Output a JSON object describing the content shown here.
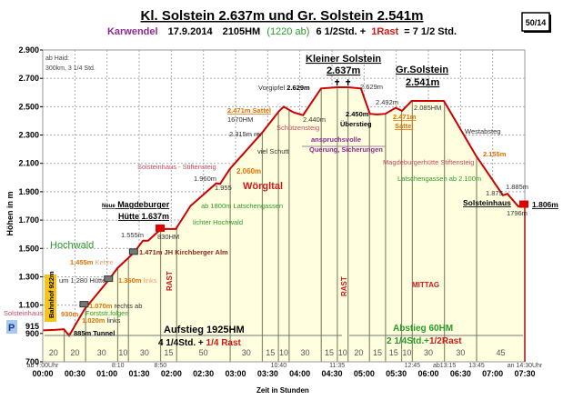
{
  "header": {
    "title": "Kl. Solstein 2.637m und Gr. Solstein 2.541m",
    "region": "Karwendel",
    "date": "17.9.2014",
    "hm": "2105HM",
    "hm_down": "(1220 ab)",
    "duration": "6 1/2Std. +",
    "rest": "1Rast",
    "total": "= 7 1/2 Std.",
    "badge": "50/14"
  },
  "colors": {
    "profile": "#cc0000",
    "fill": "#ffffe0",
    "region": "#8a2a90",
    "down": "#2a9a2a",
    "rest": "#d01818"
  },
  "chart_data": {
    "type": "area",
    "xlabel": "Zeit in Stunden",
    "ylabel": "Höhen in m",
    "xlim": [
      0,
      7.5
    ],
    "ylim": [
      700,
      2900
    ],
    "grid": true,
    "x_ticks": [
      "00:00",
      "00:30",
      "01:00",
      "01:30",
      "02:00",
      "02:30",
      "03:00",
      "03:30",
      "04:00",
      "04:30",
      "05:00",
      "05:30",
      "06:00",
      "06:30",
      "07:00",
      "07:30"
    ],
    "y_ticks": [
      "2.900",
      "2.700",
      "2.500",
      "2.300",
      "2.100",
      "1.900",
      "1.700",
      "1.500",
      "1.300",
      "1.100",
      "900",
      "700"
    ],
    "y_tick_values": [
      2900,
      2700,
      2500,
      2300,
      2100,
      1900,
      1700,
      1500,
      1300,
      1100,
      900,
      700
    ],
    "extra_y_tick": {
      "label": "915",
      "value": 915
    },
    "profile": [
      [
        0.0,
        922
      ],
      [
        0.18,
        925
      ],
      [
        0.33,
        930
      ],
      [
        0.41,
        885
      ],
      [
        0.65,
        1070
      ],
      [
        1.03,
        1280
      ],
      [
        1.16,
        1360
      ],
      [
        1.42,
        1471
      ],
      [
        1.56,
        1555
      ],
      [
        1.64,
        1555
      ],
      [
        1.84,
        1637
      ],
      [
        2.07,
        1637
      ],
      [
        2.3,
        1800
      ],
      [
        2.7,
        1960
      ],
      [
        2.76,
        1955
      ],
      [
        2.91,
        2060
      ],
      [
        3.41,
        2315
      ],
      [
        3.68,
        2471
      ],
      [
        3.75,
        2500
      ],
      [
        3.9,
        2460
      ],
      [
        4.05,
        2440
      ],
      [
        4.33,
        2629
      ],
      [
        4.58,
        2637
      ],
      [
        4.75,
        2637
      ],
      [
        4.95,
        2629
      ],
      [
        5.09,
        2450
      ],
      [
        5.2,
        2445
      ],
      [
        5.33,
        2450
      ],
      [
        5.49,
        2492
      ],
      [
        5.59,
        2471
      ],
      [
        5.74,
        2541
      ],
      [
        6.24,
        2541
      ],
      [
        6.74,
        2155
      ],
      [
        7.16,
        1875
      ],
      [
        7.23,
        1885
      ],
      [
        7.4,
        1796
      ],
      [
        7.5,
        1806
      ]
    ],
    "segment_minutes": [
      20,
      20,
      30,
      10,
      30,
      15,
      50,
      30,
      15,
      10,
      30,
      15,
      10,
      20,
      15,
      15,
      10,
      30,
      30,
      45
    ],
    "rest_segments": [
      5,
      17
    ],
    "clock_times": [
      {
        "t": 0,
        "label": "ab 7:00Uhr"
      },
      {
        "t": 1.17,
        "label": "8:10"
      },
      {
        "t": 1.83,
        "label": "8:50"
      },
      {
        "t": 3.67,
        "label": "10:40"
      },
      {
        "t": 4.58,
        "label": "11:35"
      },
      {
        "t": 5.75,
        "label": "12:45"
      },
      {
        "t": 6.25,
        "label": "ab13:15"
      },
      {
        "t": 6.75,
        "label": "13:45"
      },
      {
        "t": 7.5,
        "label": "an 14:30Uhr"
      }
    ]
  },
  "annotations": {
    "ab_haid": "ab Haid:",
    "haid_info": "300km, 3 1/4 Std.",
    "vorgipfel": "Vorgipfel",
    "vorgipfel_h": "2.629m",
    "sattel1": "2.471m Sattel",
    "hm1670": "1670HM",
    "h2315": "2.315m re.",
    "viel_schutt": "viel Schutt",
    "schuetzensteig": "Schützensteig",
    "h2440": "2.440m",
    "kl_solstein": "Kleiner Solstein",
    "kl_solstein_h": "2.637m",
    "h2629b": "2.629m",
    "gr_solstein": "Gr.Solstein",
    "gr_solstein_h": "2.541m",
    "h2450": "2.450m",
    "ueberstieg": "Überstieg",
    "h2492": "2.492m",
    "h2471b": "2.471m",
    "sattel2": "Sattel",
    "hm2085": "2.085HM",
    "anspruchsvolle": "anspruchsvolle",
    "querung": "Querung, Sicherungen",
    "westabsteg": "Westabsteg",
    "h2155": "2.155m",
    "magd_stiftensteig": "Magdeburgerhütte Stiftensteig",
    "latschen2100": "Latschengassen ab 2.100m",
    "h1885": "1.885m",
    "h1875": "1.875",
    "solsteinhaus_end": "Solsteinhaus",
    "h1806": "1.806m",
    "h1796": "1796m",
    "solst_stiftensteig": "Solsteinhaus - Stiftensteig",
    "h2060": "2.060m",
    "h1960": "1.960m",
    "h1955": "1.955",
    "woergltal": "Wörgltal",
    "neue": "Neue",
    "magdeburger": "Magdeburger",
    "huette": "Hütte  1.637m",
    "latschen1800": "ab 1800m Latschengassen",
    "lichter_hochwald": "lichter Hochwald",
    "h1555": "1.555m",
    "hm830": "830HM",
    "hochwald": "Hochwald",
    "h1471": "1.471m",
    "jh_alm": "JH Kirchberger Alm",
    "h1455": "1.455m",
    "kehre": "Kehre",
    "h1280": "um 1.280 Hütte",
    "h1360": "1.360m",
    "links1": "links",
    "h1070": "1.070m",
    "rechts_ab": "rechts ab",
    "forststr": "Forststr.folgen",
    "h1020": "1.020m",
    "links2": "links",
    "h930": "930m",
    "solsteinhaus_start": "Solsteinhaus",
    "bahnhof": "Bahnhof  922m",
    "parking": "P",
    "tunnel": "885m Tunnel",
    "rast1": "RAST",
    "rast2": "RAST",
    "mittag": "MITTAG",
    "aufstieg": "Aufstieg 1925HM",
    "aufstieg_time": "4 1/4Std. +",
    "aufstieg_rest": "1/4 Rast",
    "abstieg": "Abstieg  60HM",
    "abstieg_time": "2 1/4Std.+",
    "abstieg_rest": "1/2Rast"
  }
}
